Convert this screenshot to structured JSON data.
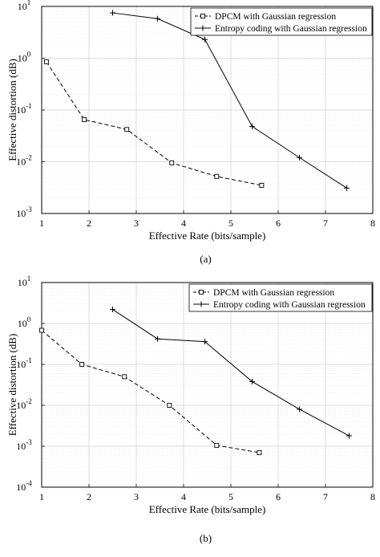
{
  "chart_data": [
    {
      "type": "line",
      "caption": "(a)",
      "xlabel": "Effective Rate (bits/sample)",
      "ylabel": "Effective distortion (dB)",
      "xlim": [
        1,
        8
      ],
      "ylim_exp": [
        -3,
        1
      ],
      "yscale": "log",
      "grid": true,
      "legend_position": "top-right",
      "x_ticks": [
        "1",
        "2",
        "3",
        "4",
        "5",
        "6",
        "7",
        "8"
      ],
      "y_tick_exponents": [
        "1",
        "0",
        "-1",
        "-2",
        "-3"
      ],
      "series": [
        {
          "name": "DPCM with Gaussian regression",
          "style": "dashed",
          "marker": "square",
          "color": "#000000",
          "x": [
            1.1,
            1.9,
            2.8,
            3.75,
            4.7,
            5.65
          ],
          "y": [
            0.85,
            0.065,
            0.042,
            0.0095,
            0.0052,
            0.0035
          ]
        },
        {
          "name": "Entropy coding with Gaussian regression",
          "style": "solid",
          "marker": "plus",
          "color": "#000000",
          "x": [
            2.5,
            3.45,
            4.45,
            5.45,
            6.45,
            7.45
          ],
          "y": [
            7.5,
            5.8,
            2.3,
            0.048,
            0.012,
            0.0031
          ]
        }
      ]
    },
    {
      "type": "line",
      "caption": "(b)",
      "xlabel": "Effective Rate (bits/sample)",
      "ylabel": "Effective distortion (dB)",
      "xlim": [
        1,
        8
      ],
      "ylim_exp": [
        -4,
        1
      ],
      "yscale": "log",
      "grid": true,
      "legend_position": "top-right",
      "x_ticks": [
        "1",
        "2",
        "3",
        "4",
        "5",
        "6",
        "7",
        "8"
      ],
      "y_tick_exponents": [
        "1",
        "0",
        "-1",
        "-2",
        "-3",
        "-4"
      ],
      "series": [
        {
          "name": "DPCM with Gaussian regression",
          "style": "dashed",
          "marker": "square",
          "color": "#000000",
          "x": [
            1.0,
            1.85,
            2.75,
            3.7,
            4.7,
            5.6
          ],
          "y": [
            0.68,
            0.1,
            0.05,
            0.01,
            0.00105,
            0.0007
          ]
        },
        {
          "name": "Entropy coding with Gaussian regression",
          "style": "solid",
          "marker": "plus",
          "color": "#000000",
          "x": [
            2.5,
            3.45,
            4.45,
            5.45,
            6.45,
            7.5
          ],
          "y": [
            2.2,
            0.42,
            0.36,
            0.038,
            0.008,
            0.0018
          ]
        }
      ]
    }
  ]
}
